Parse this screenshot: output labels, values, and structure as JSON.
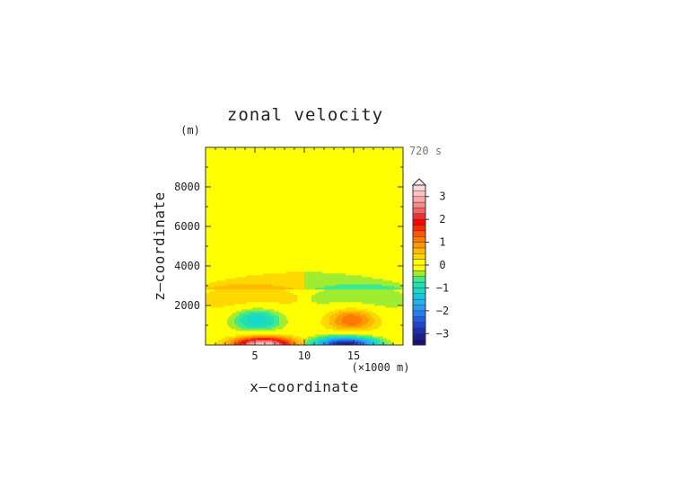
{
  "chart_data": {
    "type": "heatmap",
    "title": "zonal velocity",
    "xlabel": "x—coordinate",
    "ylabel": "z—coordinate",
    "x_unit": "(×1000 m)",
    "y_unit": "(m)",
    "time_label": "720 s",
    "xlim": [
      0,
      20
    ],
    "ylim": [
      0,
      10000
    ],
    "x_ticks": [
      5,
      10,
      15
    ],
    "y_ticks": [
      2000,
      4000,
      6000,
      8000
    ],
    "colorbar": {
      "levels": [
        -3.5,
        -3.25,
        -3,
        -2.75,
        -2.5,
        -2.25,
        -2,
        -1.75,
        -1.5,
        -1.25,
        -1,
        -0.75,
        -0.5,
        -0.25,
        0,
        0.25,
        0.5,
        0.75,
        1,
        1.25,
        1.5,
        1.75,
        2,
        2.25,
        2.5,
        2.75,
        3,
        3.25,
        3.5
      ],
      "labels": [
        3,
        2,
        1,
        0,
        -1,
        -2,
        -3
      ],
      "label_texts": [
        "3",
        "2",
        "1",
        "0",
        "−1",
        "−2",
        "−3"
      ],
      "colors": [
        "#1a0f70",
        "#1f1d8c",
        "#1e2fae",
        "#1f45cc",
        "#2060e0",
        "#2a7cee",
        "#2c9af2",
        "#20b3f0",
        "#10c8e0",
        "#18d8c8",
        "#20e0b0",
        "#40e890",
        "#a0ec30",
        "#ffff00",
        "#ffff00",
        "#ffd800",
        "#ffbb00",
        "#ff9800",
        "#ff7800",
        "#ff5400",
        "#ff2800",
        "#ff0000",
        "#ee3030",
        "#f06666",
        "#f58888",
        "#f8a6a6",
        "#fbc4c4",
        "#fdd8d8"
      ]
    },
    "field": {
      "x_range": [
        0,
        20
      ],
      "z_range": [
        0,
        10000
      ],
      "description_values": {
        "upper_left_half": 0.05,
        "upper_right_half": -0.1,
        "mid_left_core": -1.25,
        "mid_right_core": 1.25,
        "surface_left_core": 3.2,
        "surface_right_core": -3.2
      }
    }
  }
}
